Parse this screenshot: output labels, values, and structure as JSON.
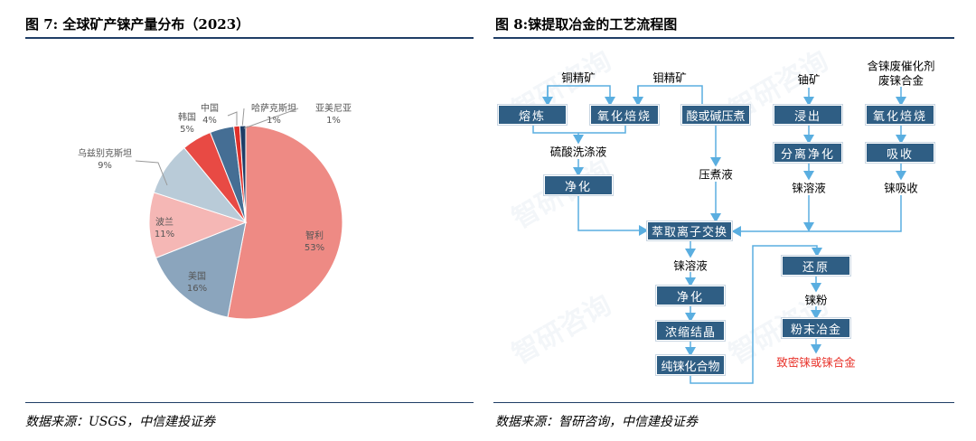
{
  "left": {
    "title": "图 7: 全球矿产铼产量分布（2023）",
    "source": "数据来源：USGS，中信建投证券"
  },
  "right": {
    "title": "图 8:铼提取冶金的工艺流程图",
    "source": "数据来源：智研咨询，中信建投证券",
    "watermark": "智研咨询"
  },
  "chart_data": {
    "type": "pie",
    "slices": [
      {
        "label": "智利",
        "value": 53,
        "pct": "53%",
        "color": "#ee8a84"
      },
      {
        "label": "美国",
        "value": 16,
        "pct": "16%",
        "color": "#8ba5bd"
      },
      {
        "label": "波兰",
        "value": 11,
        "pct": "11%",
        "color": "#f5b7b5"
      },
      {
        "label": "乌兹别克斯坦",
        "value": 9,
        "pct": "9%",
        "color": "#b9cbd8"
      },
      {
        "label": "韩国",
        "value": 5,
        "pct": "5%",
        "color": "#e84a44"
      },
      {
        "label": "中国",
        "value": 4,
        "pct": "4%",
        "color": "#456e94"
      },
      {
        "label": "哈萨克斯坦",
        "value": 1,
        "pct": "1%",
        "color": "#e0302a"
      },
      {
        "label": "亚美尼亚",
        "value": 1,
        "pct": "1%",
        "color": "#1f3d66"
      }
    ]
  },
  "flow": {
    "inputs": {
      "copper": "铜精矿",
      "moly": "钼精矿",
      "uranium": "铀矿",
      "scrap1": "含铼废催化剂",
      "scrap2": "废铼合金"
    },
    "boxes": {
      "smelt": "熔炼",
      "roast1": "氧化焙烧",
      "pressure": "酸或碱压煮",
      "leach": "浸出",
      "roast2": "氧化焙烧",
      "separate": "分离净化",
      "absorb": "吸收",
      "purify1": "净化",
      "extract": "萃取离子交换",
      "purify2": "净化",
      "crystal": "浓缩结晶",
      "compound": "纯铼化合物",
      "reduce": "还原",
      "powder_met": "粉末冶金"
    },
    "texts": {
      "wash": "硫酸洗涤液",
      "press_liquor": "压煮液",
      "re_sol1": "铼溶液",
      "re_absorb": "铼吸收",
      "re_sol2": "铼溶液",
      "re_powder": "铼粉",
      "final": "致密铼或铼合金"
    },
    "final_color": "#e8322a",
    "line_color": "#5aaee0"
  }
}
